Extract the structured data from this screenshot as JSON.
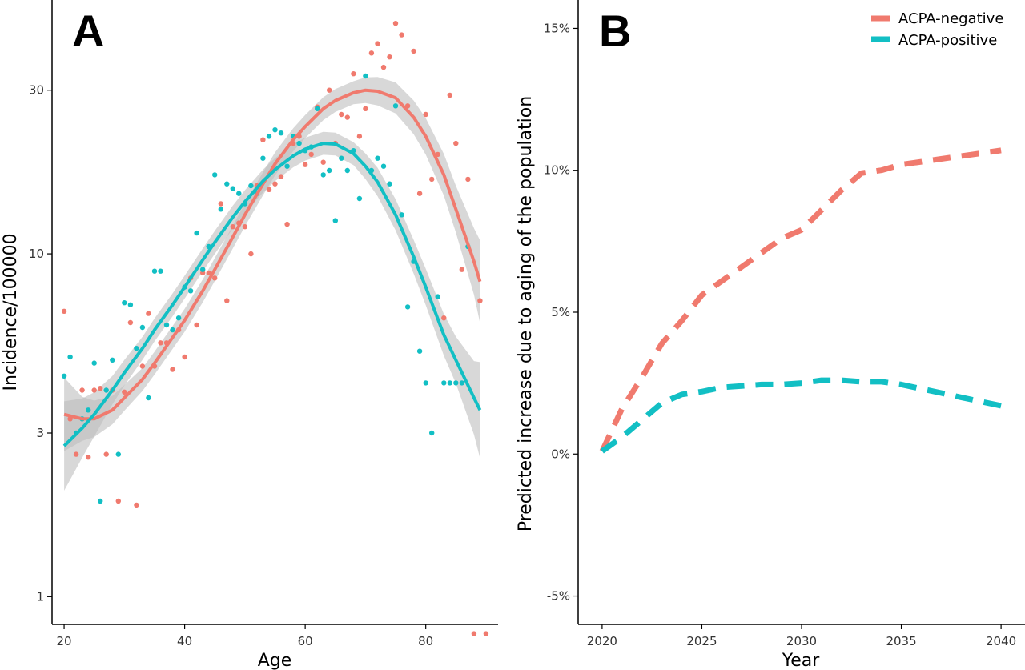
{
  "colors": {
    "acpa_negative": "#F07A6E",
    "acpa_positive": "#12BFC4",
    "band": "#BEBEBE",
    "axis": "#000000"
  },
  "chart_data": [
    {
      "panel": "A",
      "type": "scatter",
      "xlabel": "Age",
      "ylabel": "Incidence/100000",
      "xlim": [
        18,
        92
      ],
      "ylim": [
        0.83,
        55
      ],
      "yscale": "log",
      "xticks": [
        "20",
        "40",
        "60",
        "80"
      ],
      "yticks": [
        "1",
        "3",
        "10",
        "30"
      ],
      "series": [
        {
          "color_key": "acpa_negative",
          "points": [
            [
              20,
              6.8
            ],
            [
              21,
              3.3
            ],
            [
              22,
              2.6
            ],
            [
              23,
              4.0
            ],
            [
              24,
              2.55
            ],
            [
              25,
              4.0
            ],
            [
              26,
              4.05
            ],
            [
              27,
              2.6
            ],
            [
              28,
              4.0
            ],
            [
              29,
              1.9
            ],
            [
              30,
              3.95
            ],
            [
              31,
              6.3
            ],
            [
              32,
              1.85
            ],
            [
              33,
              4.7
            ],
            [
              34,
              6.7
            ],
            [
              35,
              4.7
            ],
            [
              36,
              5.5
            ],
            [
              37,
              5.5
            ],
            [
              38,
              4.6
            ],
            [
              39,
              6.0
            ],
            [
              40,
              5.0
            ],
            [
              41,
              8.5
            ],
            [
              42,
              6.2
            ],
            [
              43,
              8.8
            ],
            [
              44,
              8.8
            ],
            [
              45,
              8.5
            ],
            [
              46,
              14.0
            ],
            [
              47,
              7.3
            ],
            [
              48,
              12.0
            ],
            [
              49,
              12.3
            ],
            [
              50,
              12.0
            ],
            [
              51,
              10.0
            ],
            [
              52,
              15.8
            ],
            [
              53,
              21.5
            ],
            [
              54,
              15.4
            ],
            [
              55,
              16.0
            ],
            [
              56,
              16.8
            ],
            [
              57,
              12.2
            ],
            [
              58,
              21.0
            ],
            [
              59,
              22.0
            ],
            [
              60,
              18.2
            ],
            [
              61,
              19.5
            ],
            [
              62,
              26.8
            ],
            [
              63,
              18.5
            ],
            [
              64,
              30.0
            ],
            [
              65,
              21.0
            ],
            [
              66,
              25.5
            ],
            [
              67,
              25.0
            ],
            [
              68,
              33.5
            ],
            [
              69,
              22.0
            ],
            [
              70,
              26.5
            ],
            [
              71,
              38.5
            ],
            [
              72,
              41.0
            ],
            [
              73,
              35.0
            ],
            [
              74,
              37.5
            ],
            [
              75,
              47.0
            ],
            [
              76,
              43.5
            ],
            [
              77,
              27.0
            ],
            [
              78,
              39.0
            ],
            [
              79,
              15.0
            ],
            [
              80,
              25.5
            ],
            [
              81,
              16.5
            ],
            [
              82,
              19.5
            ],
            [
              83,
              6.5
            ],
            [
              84,
              29.0
            ],
            [
              85,
              21.0
            ],
            [
              86,
              9.0
            ],
            [
              87,
              16.5
            ],
            [
              88,
              0.78
            ],
            [
              89,
              7.3
            ],
            [
              90,
              0.78
            ]
          ]
        },
        {
          "color_key": "acpa_positive",
          "points": [
            [
              20,
              4.4
            ],
            [
              21,
              5.0
            ],
            [
              22,
              3.0
            ],
            [
              23,
              3.3
            ],
            [
              24,
              3.5
            ],
            [
              25,
              4.8
            ],
            [
              26,
              1.9
            ],
            [
              27,
              4.0
            ],
            [
              28,
              4.9
            ],
            [
              29,
              2.6
            ],
            [
              30,
              7.2
            ],
            [
              31,
              7.1
            ],
            [
              32,
              5.3
            ],
            [
              33,
              6.1
            ],
            [
              34,
              3.8
            ],
            [
              35,
              8.9
            ],
            [
              36,
              8.9
            ],
            [
              37,
              6.2
            ],
            [
              38,
              6.0
            ],
            [
              39,
              6.5
            ],
            [
              40,
              8.0
            ],
            [
              41,
              7.8
            ],
            [
              42,
              11.5
            ],
            [
              43,
              9.0
            ],
            [
              44,
              10.5
            ],
            [
              45,
              17.0
            ],
            [
              46,
              13.5
            ],
            [
              47,
              16.0
            ],
            [
              48,
              15.5
            ],
            [
              49,
              15.0
            ],
            [
              50,
              14.0
            ],
            [
              51,
              15.8
            ],
            [
              52,
              15.0
            ],
            [
              53,
              19.0
            ],
            [
              54,
              22.0
            ],
            [
              55,
              23.0
            ],
            [
              56,
              22.5
            ],
            [
              57,
              18.0
            ],
            [
              58,
              22.0
            ],
            [
              59,
              21.0
            ],
            [
              60,
              20.0
            ],
            [
              61,
              20.5
            ],
            [
              62,
              26.5
            ],
            [
              63,
              17.0
            ],
            [
              64,
              17.5
            ],
            [
              65,
              12.5
            ],
            [
              66,
              19.0
            ],
            [
              67,
              17.5
            ],
            [
              68,
              20.0
            ],
            [
              69,
              14.5
            ],
            [
              70,
              33.0
            ],
            [
              71,
              17.5
            ],
            [
              72,
              19.0
            ],
            [
              73,
              18.0
            ],
            [
              74,
              16.0
            ],
            [
              75,
              27.0
            ],
            [
              76,
              13.0
            ],
            [
              77,
              7.0
            ],
            [
              78,
              9.5
            ],
            [
              79,
              5.2
            ],
            [
              80,
              4.2
            ],
            [
              81,
              3.0
            ],
            [
              82,
              7.5
            ],
            [
              83,
              4.2
            ],
            [
              84,
              4.2
            ],
            [
              85,
              4.2
            ],
            [
              86,
              4.2
            ],
            [
              87,
              10.5
            ]
          ]
        }
      ],
      "fits": [
        {
          "color_key": "acpa_negative",
          "x": [
            20,
            23,
            25,
            28,
            30,
            33,
            35,
            38,
            40,
            43,
            45,
            48,
            50,
            53,
            55,
            58,
            60,
            63,
            65,
            68,
            70,
            72,
            75,
            78,
            80,
            83,
            85,
            88,
            89
          ],
          "y": [
            3.4,
            3.3,
            3.3,
            3.5,
            3.8,
            4.3,
            4.8,
            5.7,
            6.4,
            7.8,
            9.0,
            11.2,
            13.0,
            16.0,
            18.3,
            21.5,
            23.5,
            26.5,
            28.0,
            29.5,
            30.0,
            29.8,
            28.5,
            25.0,
            22.0,
            17.0,
            13.5,
            9.5,
            8.3
          ],
          "band_halfwidth": [
            1.28,
            1.16,
            1.13,
            1.1,
            1.09,
            1.08,
            1.08,
            1.08,
            1.08,
            1.08,
            1.08,
            1.08,
            1.08,
            1.08,
            1.08,
            1.08,
            1.08,
            1.08,
            1.08,
            1.08,
            1.09,
            1.1,
            1.11,
            1.12,
            1.13,
            1.15,
            1.17,
            1.25,
            1.32
          ]
        },
        {
          "color_key": "acpa_positive",
          "x": [
            20,
            23,
            25,
            28,
            30,
            33,
            35,
            38,
            40,
            43,
            45,
            48,
            50,
            53,
            55,
            58,
            60,
            63,
            65,
            68,
            70,
            72,
            75,
            78,
            80,
            83,
            85,
            88,
            89
          ],
          "y": [
            2.75,
            3.1,
            3.4,
            4.0,
            4.5,
            5.3,
            6.0,
            7.1,
            8.0,
            9.6,
            10.8,
            12.8,
            14.2,
            16.3,
            17.6,
            19.3,
            20.2,
            21.0,
            20.9,
            19.6,
            18.0,
            16.2,
            13.0,
            9.8,
            8.0,
            5.8,
            4.9,
            3.8,
            3.5
          ],
          "band_halfwidth": [
            1.35,
            1.22,
            1.16,
            1.1,
            1.09,
            1.08,
            1.08,
            1.08,
            1.08,
            1.08,
            1.08,
            1.08,
            1.08,
            1.08,
            1.08,
            1.08,
            1.08,
            1.08,
            1.08,
            1.08,
            1.09,
            1.1,
            1.11,
            1.12,
            1.13,
            1.15,
            1.17,
            1.28,
            1.38
          ]
        }
      ]
    },
    {
      "panel": "B",
      "type": "line",
      "xlabel": "Year",
      "ylabel": "Predicted increase due to aging of the population",
      "xlim": [
        2018.8,
        2041.2
      ],
      "ylim": [
        -6.0,
        16.0
      ],
      "xticks": [
        "2020",
        "2025",
        "2030",
        "2035",
        "2040"
      ],
      "yticks": [
        "-5%",
        "0%",
        "5%",
        "10%",
        "15%"
      ],
      "series": [
        {
          "name": "ACPA-negative",
          "color_key": "acpa_negative",
          "x": [
            2020,
            2021,
            2022,
            2023,
            2024,
            2025,
            2026,
            2027,
            2028,
            2029,
            2030,
            2031,
            2032,
            2033,
            2034,
            2035,
            2036,
            2037,
            2038,
            2039,
            2040
          ],
          "y": [
            0.1,
            1.6,
            2.7,
            3.9,
            4.7,
            5.6,
            6.1,
            6.6,
            7.1,
            7.6,
            7.9,
            8.6,
            9.3,
            9.9,
            10.0,
            10.2,
            10.3,
            10.4,
            10.5,
            10.6,
            10.7
          ]
        },
        {
          "name": "ACPA-positive",
          "color_key": "acpa_positive",
          "x": [
            2020,
            2021,
            2022,
            2023,
            2024,
            2025,
            2026,
            2027,
            2028,
            2029,
            2030,
            2031,
            2032,
            2033,
            2034,
            2035,
            2036,
            2037,
            2038,
            2039,
            2040
          ],
          "y": [
            0.1,
            0.6,
            1.2,
            1.8,
            2.1,
            2.2,
            2.35,
            2.4,
            2.45,
            2.45,
            2.5,
            2.6,
            2.6,
            2.55,
            2.55,
            2.45,
            2.3,
            2.15,
            2.0,
            1.85,
            1.7
          ]
        }
      ],
      "legend": {
        "position": "top-right",
        "entries": [
          "ACPA-negative",
          "ACPA-positive"
        ]
      }
    }
  ]
}
